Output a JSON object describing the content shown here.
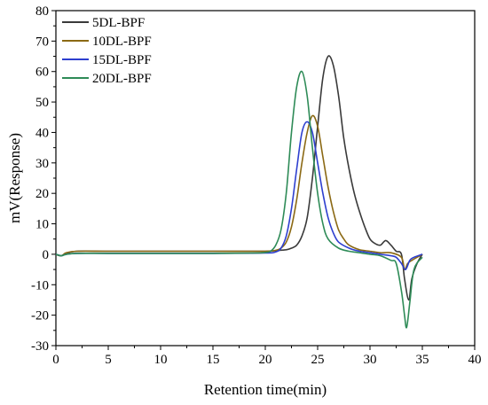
{
  "chart_data": {
    "type": "line",
    "title": "",
    "xlabel": "Retention time(min)",
    "ylabel": "mV(Response)",
    "xlim": [
      0,
      40
    ],
    "ylim": [
      -30,
      80
    ],
    "x_ticks": [
      0,
      5,
      10,
      15,
      20,
      25,
      30,
      35,
      40
    ],
    "y_ticks": [
      -30,
      -20,
      -10,
      0,
      10,
      20,
      30,
      40,
      50,
      60,
      70,
      80
    ],
    "grid": false,
    "legend_position": "top-left",
    "series": [
      {
        "name": "5DL-BPF",
        "color": "#3a3a3a",
        "x": [
          0,
          0.5,
          1,
          2,
          5,
          10,
          15,
          20,
          21,
          22,
          22.5,
          23,
          23.5,
          24,
          24.5,
          25,
          25.5,
          26,
          26.5,
          27,
          27.5,
          28,
          28.5,
          29,
          29.5,
          30,
          30.5,
          31,
          31.5,
          32,
          32.5,
          33,
          33.3,
          33.7,
          34,
          34.5,
          35
        ],
        "y": [
          0,
          -0.5,
          0.3,
          1,
          1,
          1,
          1,
          1,
          1.2,
          1.5,
          2,
          3,
          6,
          12,
          25,
          42,
          58,
          65,
          62,
          52,
          38,
          28,
          20,
          14,
          9,
          5,
          3.5,
          3,
          4.5,
          3,
          1,
          0,
          -8,
          -15,
          -8,
          -3,
          0
        ]
      },
      {
        "name": "10DL-BPF",
        "color": "#8b6914",
        "x": [
          0,
          0.5,
          1,
          2,
          5,
          10,
          15,
          20,
          21,
          21.5,
          22,
          22.5,
          23,
          23.5,
          24,
          24.5,
          25,
          25.5,
          26,
          26.5,
          27,
          27.5,
          28,
          29,
          30,
          31,
          32,
          33,
          33.3,
          33.6,
          34,
          34.5,
          35
        ],
        "y": [
          0,
          -0.5,
          0.5,
          1,
          1,
          1,
          1,
          1,
          1.3,
          2,
          4,
          9,
          18,
          30,
          40,
          45.5,
          42,
          32,
          22,
          14,
          8,
          5,
          3,
          1.5,
          1,
          0.5,
          0.5,
          -1,
          -5,
          -3,
          -2,
          -1,
          0
        ]
      },
      {
        "name": "15DL-BPF",
        "color": "#2e3fcf",
        "x": [
          0,
          0.5,
          1,
          2,
          5,
          10,
          15,
          20,
          21,
          21.5,
          22,
          22.5,
          23,
          23.5,
          24,
          24.5,
          25,
          25.5,
          26,
          26.5,
          27,
          28,
          29,
          30,
          31,
          32,
          32.5,
          33,
          33.4,
          33.8,
          34.2,
          35
        ],
        "y": [
          0,
          -0.5,
          0,
          0.3,
          0.3,
          0.3,
          0.3,
          0.4,
          0.8,
          2,
          6,
          15,
          28,
          40,
          43.5,
          40,
          30,
          20,
          12,
          7,
          4,
          2,
          1,
          0.5,
          0,
          -0.5,
          -1,
          -3,
          -5,
          -2,
          -1,
          0
        ]
      },
      {
        "name": "20DL-BPF",
        "color": "#2e8b57",
        "x": [
          0,
          0.5,
          1,
          2,
          5,
          10,
          15,
          19,
          20,
          20.5,
          21,
          21.5,
          22,
          22.5,
          23,
          23.5,
          24,
          24.5,
          25,
          25.5,
          26,
          27,
          28,
          29,
          30,
          31,
          32,
          32.5,
          33,
          33.3,
          33.5,
          33.8,
          34.2,
          35
        ],
        "y": [
          0,
          -0.5,
          0,
          0.3,
          0.3,
          0.3,
          0.3,
          0.4,
          0.6,
          1,
          3,
          8,
          20,
          40,
          55,
          60,
          52,
          35,
          20,
          10,
          5,
          2,
          1,
          0.5,
          0,
          -0.5,
          -2,
          -3,
          -12,
          -20,
          -24,
          -16,
          -5,
          -1
        ]
      }
    ]
  }
}
